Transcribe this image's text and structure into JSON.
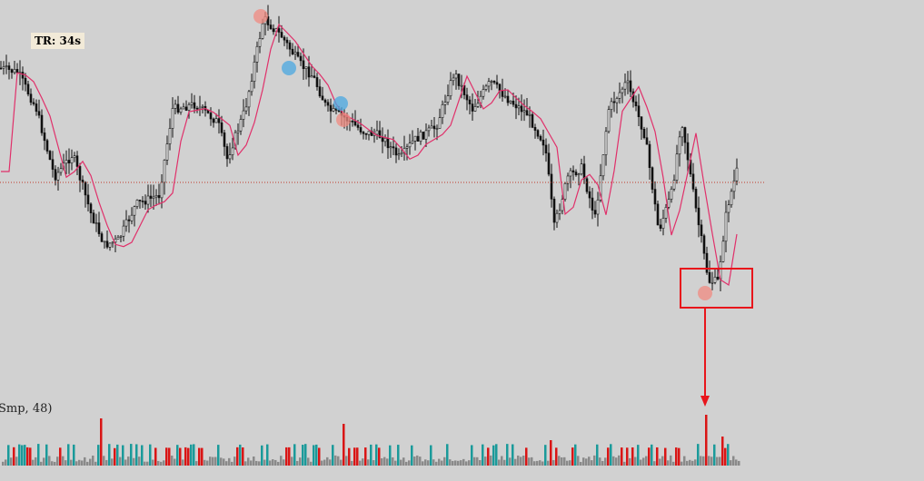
{
  "timer": {
    "label": "TR: 34s"
  },
  "volume_panel": {
    "label": "Smp, 48)"
  },
  "colors": {
    "background": "#d1d1d1",
    "candle": "#111111",
    "candle_body": "#ffffff",
    "moving_average": "#e0306a",
    "level_line": "#c0392b",
    "annotation": "#e8151b",
    "volume_up": "#1a9a9a",
    "volume_down": "#d91515",
    "volume_neutral": "#8a8a8a",
    "marker_buy": "#4aa7e0",
    "marker_sell": "#f08a80"
  },
  "annotation": {
    "type": "highlight-box-with-arrow",
    "target": "swing-low"
  },
  "markers": [
    {
      "kind": "sell",
      "color": "#f08a80"
    },
    {
      "kind": "buy",
      "color": "#4aa7e0"
    },
    {
      "kind": "buy",
      "color": "#4aa7e0"
    },
    {
      "kind": "sell",
      "color": "#f08a80"
    },
    {
      "kind": "sell",
      "color": "#f08a80"
    }
  ]
}
